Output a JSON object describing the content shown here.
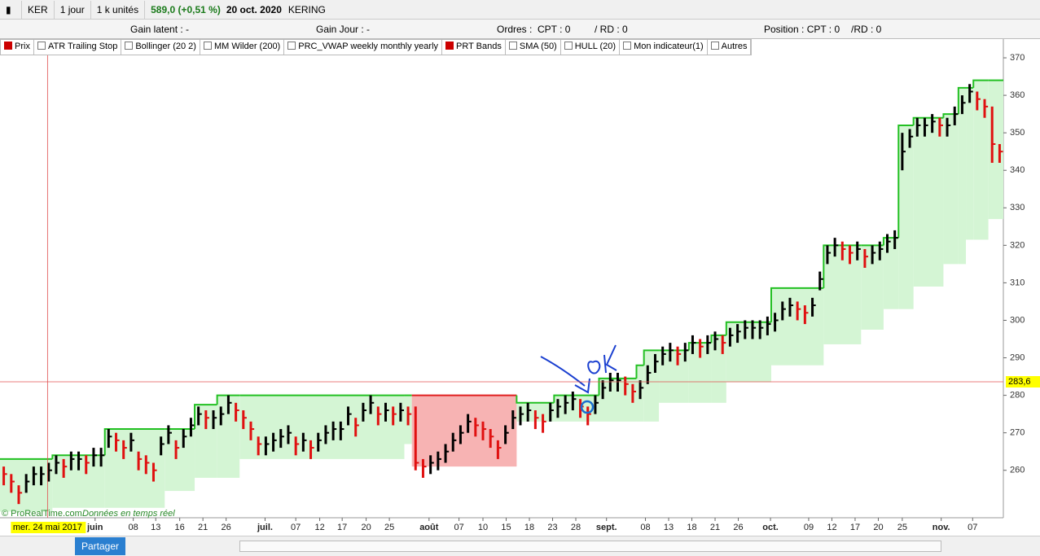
{
  "toolbar": {
    "symbol": "KER",
    "period": "1 jour",
    "units": "1 k unités",
    "price": "589,0 (+0,51 %)",
    "date": "20 oct. 2020",
    "name": "KERING"
  },
  "info": {
    "gain_latent": "Gain latent : -",
    "gain_jour": "Gain Jour : -",
    "ordres": "Ordres :",
    "ordres_cpt": "CPT : 0",
    "ordres_rd": "/ RD : 0",
    "position": "Position : CPT : 0",
    "position_rd": "/RD : 0"
  },
  "indicators": [
    "Prix",
    "ATR Trailing Stop",
    "Bollinger (20 2)",
    "MM Wilder (200)",
    "PRC_VWAP weekly monthly yearly",
    "PRT Bands",
    "SMA (50)",
    "HULL (20)",
    "Mon indicateur(1)",
    "Autres"
  ],
  "watermark": {
    "brand": "© ProRealTime.com",
    "note": "Données en temps réel"
  },
  "bottom_bar": {
    "share": "Partager"
  },
  "chart_data": {
    "type": "ohlc",
    "up_color": "#000000",
    "down_color": "#e01010",
    "close": [
      259,
      257,
      254,
      257,
      259,
      259,
      260,
      262,
      261,
      263,
      263,
      262,
      264,
      264,
      269,
      268,
      266,
      268,
      263,
      262,
      260,
      267,
      270,
      266,
      269,
      272,
      275,
      274,
      274,
      275,
      278,
      276,
      274,
      271,
      267,
      267,
      268,
      269,
      270,
      267,
      268,
      266,
      268,
      270,
      271,
      271,
      275,
      272,
      276,
      278,
      275,
      276,
      275,
      276,
      275,
      262,
      261,
      262,
      263,
      265,
      268,
      270,
      273,
      272,
      271,
      269,
      266,
      270,
      274,
      275,
      276,
      274,
      273,
      276,
      277,
      278,
      279,
      277,
      275,
      278,
      282,
      284,
      284,
      283,
      281,
      282,
      286,
      289,
      291,
      292,
      291,
      292,
      294,
      293,
      294,
      295,
      294,
      296,
      297,
      298,
      298,
      298,
      299,
      300,
      303,
      304,
      303,
      302,
      304,
      311,
      318,
      320,
      319,
      318,
      319,
      317,
      318,
      319,
      321,
      322,
      345,
      349,
      352,
      352,
      353,
      352,
      352,
      355,
      358,
      361,
      359,
      357,
      347,
      345
    ],
    "high": [
      261,
      259,
      256,
      259,
      261,
      261,
      262,
      264,
      263,
      265,
      265,
      264,
      266,
      266,
      271,
      270,
      268,
      270,
      265,
      264,
      262,
      269,
      272,
      268,
      271,
      274,
      277,
      276,
      276,
      277,
      280,
      278,
      276,
      273,
      269,
      269,
      270,
      271,
      272,
      269,
      270,
      268,
      270,
      272,
      273,
      273,
      277,
      274,
      278,
      280,
      277,
      278,
      277,
      278,
      277,
      277,
      263,
      264,
      265,
      267,
      270,
      272,
      275,
      274,
      273,
      271,
      268,
      272,
      276,
      277,
      278,
      276,
      275,
      278,
      279,
      280,
      281,
      279,
      277,
      280,
      284,
      286,
      286,
      285,
      283,
      284,
      288,
      291,
      293,
      294,
      293,
      294,
      296,
      295,
      296,
      297,
      296,
      298,
      299,
      300,
      300,
      300,
      301,
      302,
      305,
      306,
      305,
      304,
      306,
      313,
      320,
      322,
      321,
      320,
      321,
      319,
      320,
      321,
      323,
      324,
      350,
      351,
      354,
      354,
      355,
      354,
      354,
      357,
      360,
      363,
      361,
      359,
      357,
      347
    ],
    "low": [
      256,
      254,
      251,
      254,
      256,
      256,
      257,
      259,
      258,
      260,
      260,
      259,
      261,
      261,
      266,
      265,
      263,
      265,
      260,
      259,
      257,
      264,
      267,
      263,
      266,
      269,
      272,
      271,
      271,
      272,
      275,
      273,
      271,
      268,
      264,
      264,
      265,
      266,
      267,
      264,
      265,
      263,
      265,
      267,
      268,
      268,
      272,
      269,
      273,
      275,
      272,
      273,
      272,
      273,
      272,
      260,
      258,
      259,
      260,
      262,
      265,
      267,
      270,
      269,
      268,
      266,
      263,
      267,
      271,
      272,
      273,
      271,
      270,
      273,
      274,
      275,
      276,
      274,
      272,
      275,
      279,
      281,
      281,
      280,
      278,
      279,
      283,
      286,
      288,
      289,
      288,
      289,
      291,
      290,
      291,
      292,
      291,
      293,
      294,
      295,
      295,
      295,
      296,
      297,
      300,
      301,
      300,
      299,
      301,
      308,
      315,
      317,
      316,
      315,
      316,
      314,
      315,
      316,
      318,
      319,
      340,
      346,
      349,
      349,
      350,
      349,
      349,
      352,
      355,
      358,
      356,
      354,
      342,
      342
    ],
    "bands": [
      {
        "from": 0,
        "to": 7,
        "upper": 263,
        "lower": 249,
        "color": "#22c022",
        "fill": "#d4f5d4"
      },
      {
        "from": 7,
        "to": 14,
        "upper": 264,
        "lower": 250,
        "color": "#22c022",
        "fill": "#d4f5d4"
      },
      {
        "from": 14,
        "to": 22,
        "upper": 271,
        "lower": 250,
        "color": "#22c022",
        "fill": "#d4f5d4"
      },
      {
        "from": 22,
        "to": 26,
        "upper": 271,
        "lower": 254.5,
        "color": "#22c022",
        "fill": "#d4f5d4"
      },
      {
        "from": 26,
        "to": 29,
        "upper": 277.5,
        "lower": 258,
        "color": "#22c022",
        "fill": "#d4f5d4"
      },
      {
        "from": 29,
        "to": 32,
        "upper": 280,
        "lower": 258,
        "color": "#22c022",
        "fill": "#d4f5d4"
      },
      {
        "from": 32,
        "to": 54,
        "upper": 280,
        "lower": 263,
        "color": "#22c022",
        "fill": "#d4f5d4"
      },
      {
        "from": 54,
        "to": 55,
        "upper": 280,
        "lower": 267,
        "color": "#22c022",
        "fill": "#d4f5d4"
      },
      {
        "from": 55,
        "to": 69,
        "upper": 280,
        "lower": 261,
        "color": "#e02020",
        "fill": "#f7b3b3"
      },
      {
        "from": 69,
        "to": 74,
        "upper": 278,
        "lower": 273,
        "color": "#22c022",
        "fill": "#d4f5d4"
      },
      {
        "from": 74,
        "to": 80,
        "upper": 280,
        "lower": 273,
        "color": "#22c022",
        "fill": "#d4f5d4"
      },
      {
        "from": 80,
        "to": 85,
        "upper": 284.5,
        "lower": 273,
        "color": "#22c022",
        "fill": "#d4f5d4"
      },
      {
        "from": 85,
        "to": 86,
        "upper": 288,
        "lower": 273,
        "color": "#22c022",
        "fill": "#d4f5d4"
      },
      {
        "from": 86,
        "to": 88,
        "upper": 292,
        "lower": 273,
        "color": "#22c022",
        "fill": "#d4f5d4"
      },
      {
        "from": 88,
        "to": 92,
        "upper": 292,
        "lower": 278,
        "color": "#22c022",
        "fill": "#d4f5d4"
      },
      {
        "from": 92,
        "to": 95,
        "upper": 294,
        "lower": 278,
        "color": "#22c022",
        "fill": "#d4f5d4"
      },
      {
        "from": 95,
        "to": 97,
        "upper": 296,
        "lower": 278,
        "color": "#22c022",
        "fill": "#d4f5d4"
      },
      {
        "from": 97,
        "to": 103,
        "upper": 299.5,
        "lower": 283.5,
        "color": "#22c022",
        "fill": "#d4f5d4"
      },
      {
        "from": 103,
        "to": 110,
        "upper": 308.6,
        "lower": 288,
        "color": "#22c022",
        "fill": "#d4f5d4"
      },
      {
        "from": 110,
        "to": 115,
        "upper": 320,
        "lower": 293.6,
        "color": "#22c022",
        "fill": "#d4f5d4"
      },
      {
        "from": 115,
        "to": 118,
        "upper": 320,
        "lower": 297.5,
        "color": "#22c022",
        "fill": "#d4f5d4"
      },
      {
        "from": 118,
        "to": 120,
        "upper": 322,
        "lower": 303,
        "color": "#22c022",
        "fill": "#d4f5d4"
      },
      {
        "from": 120,
        "to": 122,
        "upper": 352,
        "lower": 303,
        "color": "#22c022",
        "fill": "#d4f5d4"
      },
      {
        "from": 122,
        "to": 126,
        "upper": 354,
        "lower": 309,
        "color": "#22c022",
        "fill": "#d4f5d4"
      },
      {
        "from": 126,
        "to": 128,
        "upper": 355,
        "lower": 315,
        "color": "#22c022",
        "fill": "#d4f5d4"
      },
      {
        "from": 128,
        "to": 129,
        "upper": 362,
        "lower": 315,
        "color": "#22c022",
        "fill": "#d4f5d4"
      },
      {
        "from": 129,
        "to": 130,
        "upper": 362,
        "lower": 321.5,
        "color": "#22c022",
        "fill": "#d4f5d4"
      },
      {
        "from": 130,
        "to": 132,
        "upper": 364,
        "lower": 321.5,
        "color": "#22c022",
        "fill": "#d4f5d4"
      },
      {
        "from": 132,
        "to": 134,
        "upper": 364,
        "lower": 327,
        "color": "#22c022",
        "fill": "#d4f5d4"
      }
    ],
    "xlim": [
      0,
      134
    ],
    "xticks": [
      {
        "value": 12.7,
        "label": "juin"
      },
      {
        "value": 17.8,
        "label": "08"
      },
      {
        "value": 20.8,
        "label": "13"
      },
      {
        "value": 24,
        "label": "16"
      },
      {
        "value": 27.1,
        "label": "21"
      },
      {
        "value": 30.2,
        "label": "26"
      },
      {
        "value": 35.4,
        "label": "juil."
      },
      {
        "value": 39.5,
        "label": "07"
      },
      {
        "value": 42.7,
        "label": "12"
      },
      {
        "value": 45.7,
        "label": "17"
      },
      {
        "value": 48.9,
        "label": "20"
      },
      {
        "value": 52,
        "label": "25"
      },
      {
        "value": 57.3,
        "label": "août"
      },
      {
        "value": 61.3,
        "label": "07"
      },
      {
        "value": 64.5,
        "label": "10"
      },
      {
        "value": 67.6,
        "label": "15"
      },
      {
        "value": 70.7,
        "label": "18"
      },
      {
        "value": 73.8,
        "label": "23"
      },
      {
        "value": 76.9,
        "label": "28"
      },
      {
        "value": 81,
        "label": "sept."
      },
      {
        "value": 86.2,
        "label": "08"
      },
      {
        "value": 89.3,
        "label": "13"
      },
      {
        "value": 92.4,
        "label": "18"
      },
      {
        "value": 95.5,
        "label": "21"
      },
      {
        "value": 98.6,
        "label": "26"
      },
      {
        "value": 102.9,
        "label": "oct."
      },
      {
        "value": 108,
        "label": "09"
      },
      {
        "value": 111.1,
        "label": "12"
      },
      {
        "value": 114.2,
        "label": "17"
      },
      {
        "value": 117.3,
        "label": "20"
      },
      {
        "value": 120.5,
        "label": "25"
      },
      {
        "value": 125.7,
        "label": "nov."
      },
      {
        "value": 129.9,
        "label": "07"
      }
    ],
    "ylim": [
      248,
      375
    ],
    "yticks": [
      260,
      270,
      280,
      290,
      300,
      310,
      320,
      330,
      340,
      350,
      360,
      370
    ],
    "cursor_x": {
      "value": 6.35,
      "label": "mer. 24 mai 2017"
    },
    "cursor_y": {
      "value": 283.6,
      "label": "283,6"
    }
  }
}
